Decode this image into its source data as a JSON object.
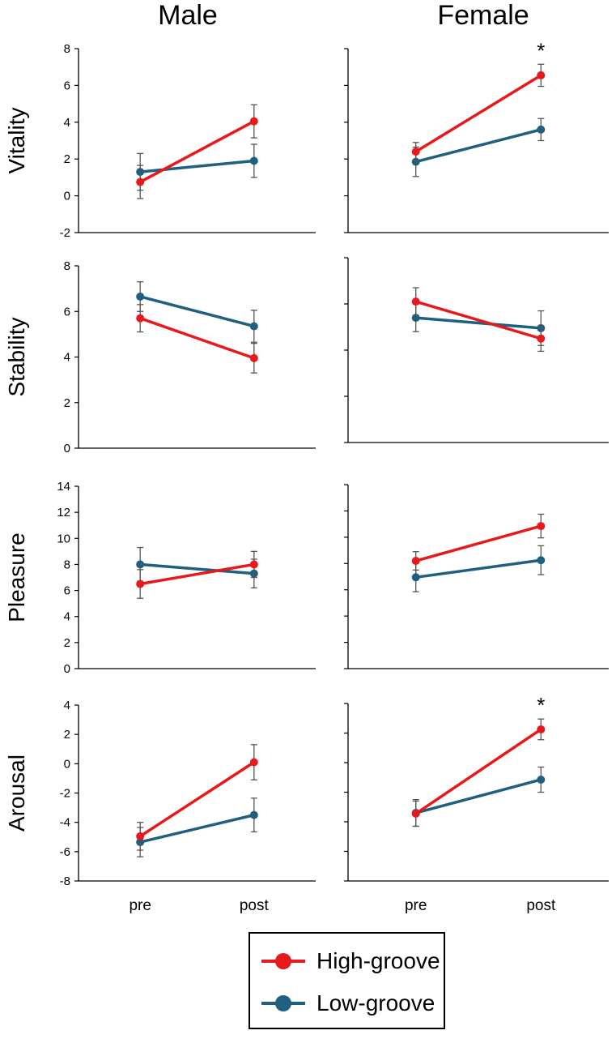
{
  "column_titles": {
    "male": "Male",
    "female": "Female"
  },
  "legend": {
    "high": {
      "label": "High-groove",
      "color": "#E8191C"
    },
    "low": {
      "label": "Low-groove",
      "color": "#1F5F80"
    }
  },
  "chart_data": [
    {
      "type": "line",
      "title": "Male",
      "ylabel": "Vitality",
      "categories": [
        "pre",
        "post"
      ],
      "ylim": [
        -2,
        8
      ],
      "ytick_step": 2,
      "show_yticks": true,
      "show_xticks": false,
      "series": [
        {
          "name": "High-groove",
          "values": [
            0.75,
            4.05
          ],
          "errors": [
            0.9,
            0.9
          ]
        },
        {
          "name": "Low-groove",
          "values": [
            1.3,
            1.9
          ],
          "errors": [
            1.0,
            0.9
          ]
        }
      ],
      "annotations": []
    },
    {
      "type": "line",
      "title": "Female",
      "ylabel": "",
      "categories": [
        "pre",
        "post"
      ],
      "ylim": [
        -2,
        8
      ],
      "ytick_step": 2,
      "show_yticks": false,
      "show_xticks": false,
      "series": [
        {
          "name": "High-groove",
          "values": [
            2.4,
            6.55
          ],
          "errors": [
            0.5,
            0.6
          ]
        },
        {
          "name": "Low-groove",
          "values": [
            1.85,
            3.6
          ],
          "errors": [
            0.8,
            0.6
          ]
        }
      ],
      "annotations": [
        "*"
      ]
    },
    {
      "type": "line",
      "title": "Male",
      "ylabel": "Stability",
      "categories": [
        "pre",
        "post"
      ],
      "ylim": [
        0,
        8
      ],
      "ytick_step": 2,
      "show_yticks": true,
      "show_xticks": false,
      "series": [
        {
          "name": "High-groove",
          "values": [
            5.7,
            3.95
          ],
          "errors": [
            0.6,
            0.65
          ]
        },
        {
          "name": "Low-groove",
          "values": [
            6.65,
            5.35
          ],
          "errors": [
            0.65,
            0.7
          ]
        }
      ],
      "annotations": []
    },
    {
      "type": "line",
      "title": "Female",
      "ylabel": "",
      "categories": [
        "pre",
        "post"
      ],
      "ylim": [
        0,
        8
      ],
      "ytick_step": 2,
      "show_yticks": false,
      "show_xticks": false,
      "series": [
        {
          "name": "High-groove",
          "values": [
            6.1,
            4.5
          ],
          "errors": [
            0.6,
            0.55
          ]
        },
        {
          "name": "Low-groove",
          "values": [
            5.4,
            4.95
          ],
          "errors": [
            0.6,
            0.75
          ]
        }
      ],
      "annotations": []
    },
    {
      "type": "line",
      "title": "Male",
      "ylabel": "Pleasure",
      "categories": [
        "pre",
        "post"
      ],
      "ylim": [
        0,
        14
      ],
      "ytick_step": 2,
      "show_yticks": true,
      "show_xticks": false,
      "series": [
        {
          "name": "High-groove",
          "values": [
            6.5,
            8.0
          ],
          "errors": [
            1.1,
            1.0
          ]
        },
        {
          "name": "Low-groove",
          "values": [
            8.0,
            7.3
          ],
          "errors": [
            1.3,
            1.1
          ]
        }
      ],
      "annotations": []
    },
    {
      "type": "line",
      "title": "Female",
      "ylabel": "",
      "categories": [
        "pre",
        "post"
      ],
      "ylim": [
        0,
        14
      ],
      "ytick_step": 2,
      "show_yticks": false,
      "show_xticks": false,
      "series": [
        {
          "name": "High-groove",
          "values": [
            8.2,
            10.85
          ],
          "errors": [
            0.7,
            0.9
          ]
        },
        {
          "name": "Low-groove",
          "values": [
            6.95,
            8.25
          ],
          "errors": [
            1.1,
            1.1
          ]
        }
      ],
      "annotations": []
    },
    {
      "type": "line",
      "title": "Male",
      "ylabel": "Arousal",
      "categories": [
        "pre",
        "post"
      ],
      "ylim": [
        -8,
        4
      ],
      "ytick_step": 2,
      "show_yticks": true,
      "show_xticks": true,
      "series": [
        {
          "name": "High-groove",
          "values": [
            -4.95,
            0.1
          ],
          "errors": [
            0.95,
            1.2
          ]
        },
        {
          "name": "Low-groove",
          "values": [
            -5.35,
            -3.5
          ],
          "errors": [
            1.0,
            1.15
          ]
        }
      ],
      "annotations": []
    },
    {
      "type": "line",
      "title": "Female",
      "ylabel": "",
      "categories": [
        "pre",
        "post"
      ],
      "ylim": [
        -8,
        4
      ],
      "ytick_step": 2,
      "show_yticks": false,
      "show_xticks": true,
      "series": [
        {
          "name": "High-groove",
          "values": [
            -3.45,
            2.25
          ],
          "errors": [
            0.85,
            0.7
          ]
        },
        {
          "name": "Low-groove",
          "values": [
            -3.4,
            -1.15
          ],
          "errors": [
            0.9,
            0.85
          ]
        }
      ],
      "annotations": [
        "*"
      ]
    }
  ]
}
